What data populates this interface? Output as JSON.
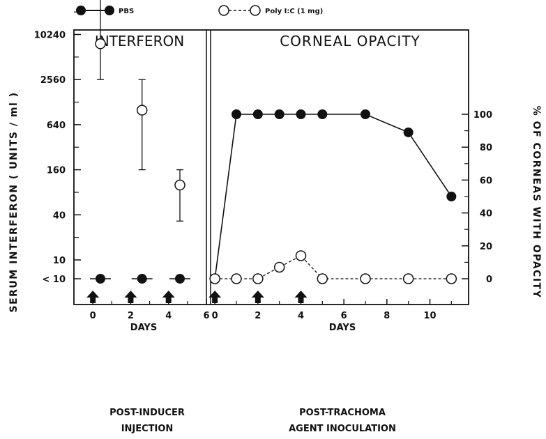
{
  "legend": [
    {
      "label": "PBS",
      "marker": "filled",
      "line": "solid"
    },
    {
      "label": "Poly I:C (1 mg)",
      "marker": "open",
      "line": "dashed"
    }
  ],
  "chart_data": [
    {
      "type": "scatter",
      "title": "INTERFERON",
      "xlabel": "DAYS",
      "subtitle_lines": [
        "POST-INDUCER",
        "INJECTION"
      ],
      "ylabel": "SERUM INTERFERON ( UNITS / ml )",
      "y_scale": "log4",
      "x_ticks": [
        0,
        2,
        4,
        6
      ],
      "xlim": [
        -1,
        6
      ],
      "y_ticks": [
        "< 10",
        "10",
        "40",
        "160",
        "640",
        "2560",
        "10240"
      ],
      "arrows_x": [
        0,
        2,
        4
      ],
      "series": [
        {
          "name": "Poly I:C (1 mg)",
          "marker": "open",
          "points": [
            {
              "x": 0.4,
              "y": 7700,
              "err_low": 2560,
              "err_high": 40960
            },
            {
              "x": 2.6,
              "y": 1000,
              "err_low": 160,
              "err_high": 2560
            },
            {
              "x": 4.6,
              "y": 100,
              "err_low": 33,
              "err_high": 160
            }
          ]
        },
        {
          "name": "PBS",
          "marker": "filled",
          "points": [
            {
              "x": 0.4,
              "y": "< 10"
            },
            {
              "x": 2.6,
              "y": "< 10"
            },
            {
              "x": 4.6,
              "y": "< 10"
            }
          ]
        }
      ]
    },
    {
      "type": "line",
      "title": "CORNEAL OPACITY",
      "xlabel": "DAYS",
      "subtitle_lines": [
        "POST-TRACHOMA",
        "AGENT INOCULATION"
      ],
      "ylabel": "% OF CORNEAS WITH OPACITY",
      "x_ticks": [
        0,
        2,
        4,
        6,
        8,
        10
      ],
      "xlim": [
        -0.2,
        11.8
      ],
      "y_ticks": [
        0,
        20,
        40,
        60,
        80,
        100
      ],
      "ylim": [
        -10,
        130
      ],
      "arrows_x": [
        0,
        2,
        4
      ],
      "series": [
        {
          "name": "PBS",
          "marker": "filled",
          "line": "solid",
          "x": [
            0,
            1,
            2,
            3,
            4,
            5,
            7,
            9,
            11
          ],
          "y": [
            0,
            100,
            100,
            100,
            100,
            100,
            100,
            89,
            50
          ]
        },
        {
          "name": "Poly I:C (1 mg)",
          "marker": "open",
          "line": "dashed",
          "x": [
            0,
            1,
            2,
            3,
            4,
            5,
            7,
            9,
            11
          ],
          "y": [
            0,
            0,
            0,
            7,
            14,
            0,
            0,
            0,
            0
          ]
        }
      ]
    }
  ]
}
